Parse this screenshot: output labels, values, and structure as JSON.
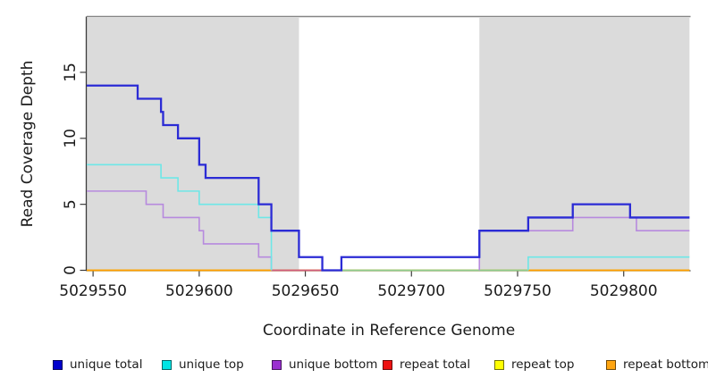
{
  "chart_data": {
    "type": "line",
    "subtype": "step-coverage",
    "title": "",
    "xlabel": "Coordinate in Reference Genome",
    "ylabel": "Read Coverage Depth",
    "xlim": [
      5029547,
      5029831
    ],
    "ylim": [
      0,
      19.2
    ],
    "x_ticks": [
      5029550,
      5029600,
      5029650,
      5029700,
      5029750,
      5029800
    ],
    "y_ticks": [
      0,
      5,
      10,
      15
    ],
    "grid": false,
    "legend_position": "bottom",
    "background_color": "#ffffff",
    "shaded_regions": [
      {
        "x0": 5029547,
        "x1": 5029647,
        "color": "#dbdbdb"
      },
      {
        "x0": 5029732,
        "x1": 5029831,
        "color": "#dbdbdb"
      }
    ],
    "series": [
      {
        "name": "unique total",
        "legend_color": "#0000cd",
        "line_color": "#2b2bd5",
        "line_width": 2.3,
        "segments": [
          [
            [
              5029547,
              14
            ],
            [
              5029571,
              13
            ],
            [
              5029582,
              12
            ],
            [
              5029583,
              11
            ],
            [
              5029590,
              10
            ],
            [
              5029600,
              8
            ],
            [
              5029603,
              7
            ],
            [
              5029628,
              5
            ],
            [
              5029634,
              3
            ],
            [
              5029647,
              1
            ],
            [
              5029658,
              0
            ],
            [
              5029667,
              1
            ],
            [
              5029732,
              3
            ],
            [
              5029755,
              4
            ],
            [
              5029776,
              5
            ],
            [
              5029803,
              4
            ],
            [
              5029831,
              4
            ]
          ]
        ]
      },
      {
        "name": "unique top",
        "legend_color": "#00e5e5",
        "line_color": "#6ee7e7",
        "line_width": 1.6,
        "segments": [
          [
            [
              5029547,
              8
            ],
            [
              5029582,
              7
            ],
            [
              5029590,
              6
            ],
            [
              5029600,
              5
            ],
            [
              5029628,
              4
            ],
            [
              5029634,
              0
            ]
          ],
          [
            [
              5029755,
              0
            ],
            [
              5029755,
              1
            ],
            [
              5029831,
              1
            ]
          ]
        ]
      },
      {
        "name": "unique bottom",
        "legend_color": "#9a30d0",
        "line_color": "#b78ade",
        "line_width": 1.6,
        "segments": [
          [
            [
              5029547,
              6
            ],
            [
              5029575,
              5
            ],
            [
              5029583,
              4
            ],
            [
              5029600,
              3
            ],
            [
              5029602,
              2
            ],
            [
              5029628,
              1
            ],
            [
              5029634,
              0
            ]
          ],
          [
            [
              5029732,
              0
            ],
            [
              5029732,
              3
            ],
            [
              5029776,
              4
            ],
            [
              5029806,
              3
            ],
            [
              5029831,
              3
            ]
          ]
        ]
      },
      {
        "name": "repeat total",
        "legend_color": "#ee1111",
        "line_color": "#d05c7c",
        "line_width": 1.8,
        "segments": [
          [
            [
              5029547,
              0
            ],
            [
              5029831,
              0
            ]
          ]
        ]
      },
      {
        "name": "repeat top",
        "legend_color": "#ffff00",
        "line_color": "#f2f22a",
        "line_width": 1.8,
        "segments": [
          [
            [
              5029547,
              0
            ],
            [
              5029831,
              0
            ]
          ]
        ]
      },
      {
        "name": "repeat bottom",
        "legend_color": "#ffa510",
        "line_color": "#ff9e00",
        "line_width": 1.8,
        "segments": [
          [
            [
              5029547,
              0
            ],
            [
              5029831,
              0
            ]
          ]
        ]
      }
    ],
    "zero_overlay_segments": [
      {
        "x0": 5029634,
        "x1": 5029667,
        "color": "#d05c7c"
      },
      {
        "x0": 5029667,
        "x1": 5029755,
        "color": "#8ecd8e"
      }
    ]
  }
}
